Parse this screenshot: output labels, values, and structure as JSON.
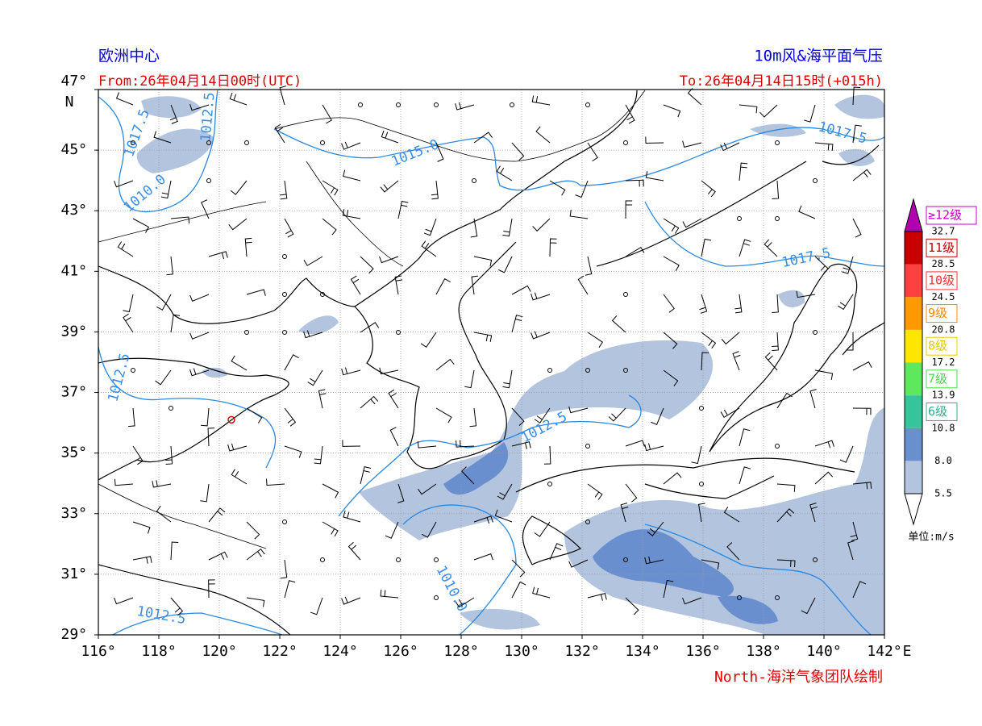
{
  "header": {
    "source": "欧洲中心",
    "product": "10m风&海平面气压",
    "from": "From:26年04月14日00时(UTC)",
    "to": "To:26年04月14日15时(+015h)"
  },
  "map": {
    "lat_ticks": [
      {
        "value": 47,
        "label": "47°"
      },
      {
        "value": 45,
        "label": "45°"
      },
      {
        "value": 43,
        "label": "43°"
      },
      {
        "value": 41,
        "label": "41°"
      },
      {
        "value": 39,
        "label": "39°"
      },
      {
        "value": 37,
        "label": "37°"
      },
      {
        "value": 35,
        "label": "35°"
      },
      {
        "value": 33,
        "label": "33°"
      },
      {
        "value": 31,
        "label": "31°"
      },
      {
        "value": 29,
        "label": "29°"
      }
    ],
    "lat_unit": "N",
    "lon_ticks": [
      {
        "value": 116,
        "label": "116°"
      },
      {
        "value": 118,
        "label": "118°"
      },
      {
        "value": 120,
        "label": "120°"
      },
      {
        "value": 122,
        "label": "122°"
      },
      {
        "value": 124,
        "label": "124°"
      },
      {
        "value": 126,
        "label": "126°"
      },
      {
        "value": 128,
        "label": "128°"
      },
      {
        "value": 130,
        "label": "130°"
      },
      {
        "value": 132,
        "label": "132°"
      },
      {
        "value": 134,
        "label": "134°"
      },
      {
        "value": 136,
        "label": "136°"
      },
      {
        "value": 138,
        "label": "138°"
      },
      {
        "value": 140,
        "label": "140°"
      },
      {
        "value": 142,
        "label": "142°"
      }
    ],
    "lon_unit": "E",
    "contour_labels": [
      "1017.5",
      "1012.5",
      "1015.0",
      "1017.5",
      "1010.0",
      "1017.5",
      "1012.5",
      "1012.5",
      "1010.0",
      "1012.5"
    ]
  },
  "colorbar": {
    "levels": [
      "5.5",
      "8.0",
      "10.8",
      "13.9",
      "17.2",
      "20.8",
      "24.5",
      "28.5",
      "32.7"
    ],
    "grades": [
      "6级",
      "7级",
      "8级",
      "9级",
      "10级",
      "11级",
      "≥12级"
    ],
    "unit": "单位:m/s"
  },
  "footer": "North-海洋气象团队绘制"
}
